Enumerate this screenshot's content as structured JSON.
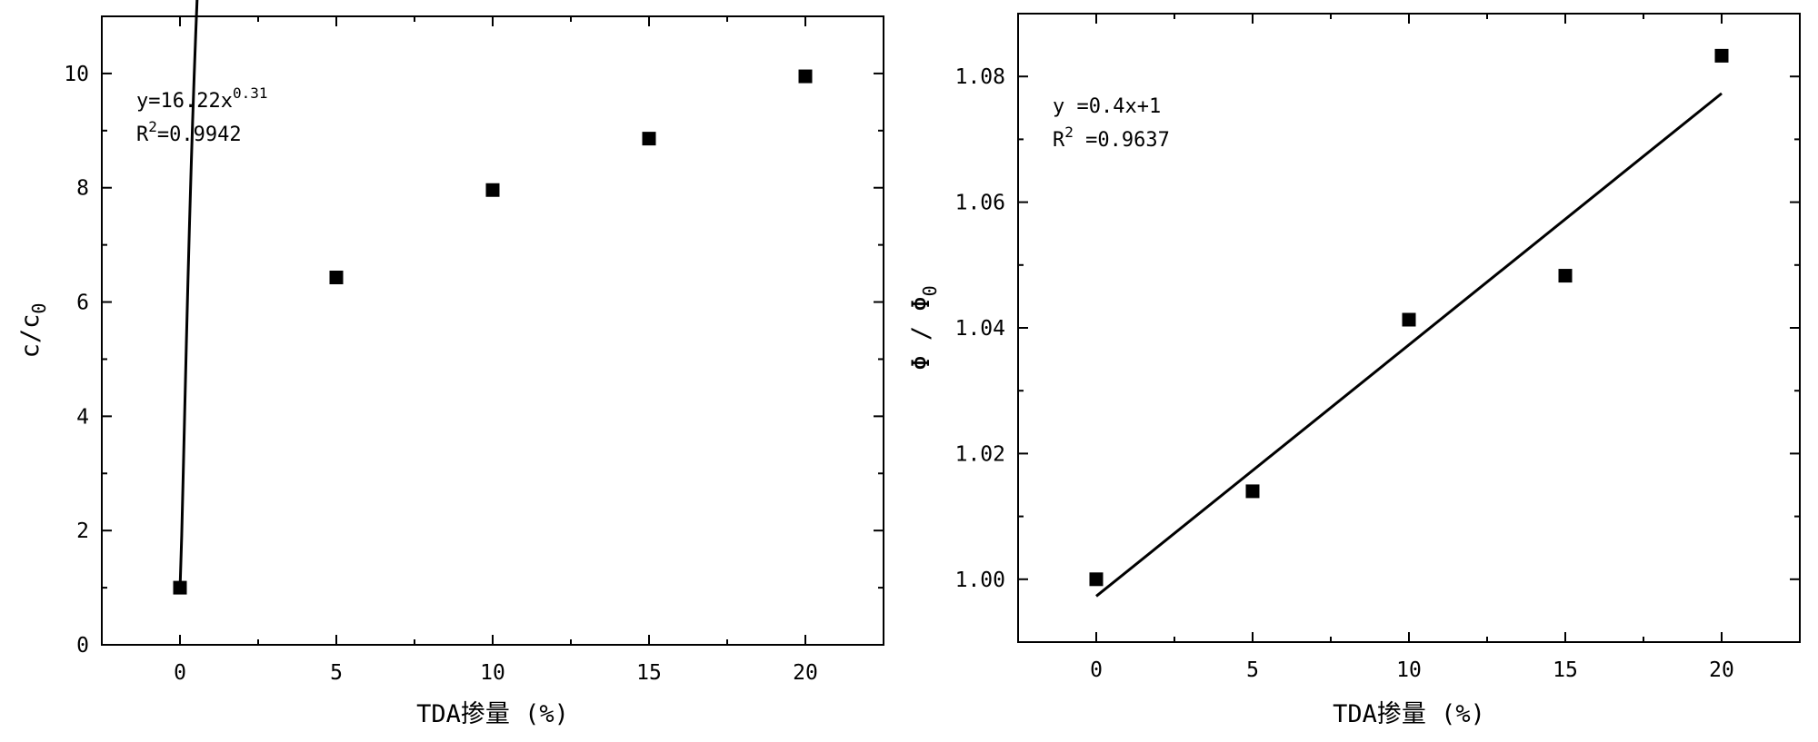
{
  "chart_data": [
    {
      "type": "scatter",
      "xlabel": "TDA掺量 (%)",
      "ylabel": "c/c",
      "ylabel_sub": "0",
      "xlim": [
        -2.5,
        22.5
      ],
      "ylim": [
        0,
        11
      ],
      "xticks": [
        0,
        5,
        10,
        15,
        20
      ],
      "yticks": [
        0,
        2,
        4,
        6,
        8,
        10
      ],
      "ytick_decimals": 0,
      "x": [
        0,
        5,
        10,
        15,
        20
      ],
      "y": [
        1.0,
        6.43,
        7.96,
        8.86,
        9.95
      ],
      "fit": {
        "kind": "power",
        "a": 16.22,
        "b": 0.31,
        "y0": 1.0
      },
      "annotation": {
        "line1_main": "y=16.22x",
        "line1_sup": "0.31",
        "line2_pre": "R",
        "line2_sup": "2",
        "line2_post": "=0.9942"
      }
    },
    {
      "type": "scatter",
      "xlabel": "TDA掺量 (%)",
      "ylabel": "Φ / Φ",
      "ylabel_sub": "0",
      "xlim": [
        -2.5,
        22.5
      ],
      "ylim": [
        0.99,
        1.09
      ],
      "xticks": [
        0,
        5,
        10,
        15,
        20
      ],
      "yticks": [
        1.0,
        1.02,
        1.04,
        1.06,
        1.08
      ],
      "ytick_decimals": 2,
      "x": [
        0,
        5,
        10,
        15,
        20
      ],
      "y": [
        1.0,
        1.014,
        1.0413,
        1.0483,
        1.0833
      ],
      "fit": {
        "kind": "linear",
        "slope": 0.004,
        "intercept": 0.9973
      },
      "annotation": {
        "line1_main": "y =0.4x+1",
        "line1_sup": "",
        "line2_pre": "R",
        "line2_sup": "2",
        "line2_post": " =0.9637"
      }
    }
  ]
}
